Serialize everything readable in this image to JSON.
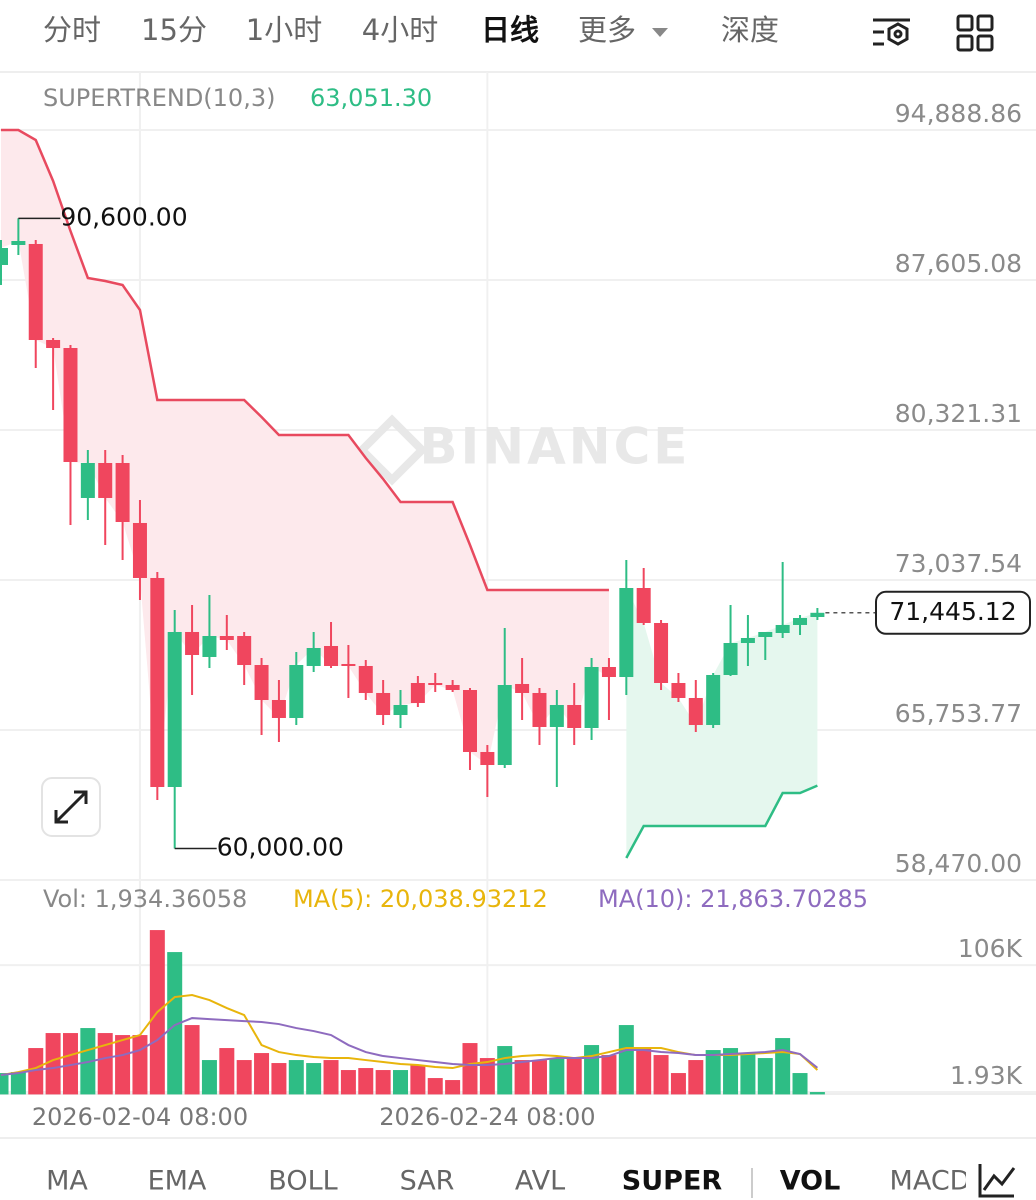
{
  "tabs": {
    "items": [
      "分时",
      "15分",
      "1小时",
      "4小时",
      "日线",
      "更多",
      "深度"
    ],
    "active": 4
  },
  "chart_data": [
    {
      "type": "candlestick",
      "indicator": "SUPERTREND(10,3)",
      "indicator_value_label": "63,051.30",
      "watermark": "BINANCE",
      "categories": [
        null,
        null,
        null,
        null,
        null,
        null,
        null,
        null,
        "2026-02-04 08:00",
        null,
        null,
        null,
        null,
        null,
        null,
        null,
        null,
        null,
        null,
        null,
        null,
        null,
        null,
        null,
        null,
        null,
        null,
        null,
        "2026-02-24 08:00",
        null,
        null,
        null,
        null,
        null,
        null,
        null,
        null,
        null,
        null,
        null,
        null,
        null,
        null,
        null,
        null,
        null,
        null,
        null
      ],
      "open": [
        88334,
        89305,
        89354,
        84692,
        84303,
        77020,
        78719,
        78719,
        75806,
        73135,
        62986,
        70513,
        69299,
        70318,
        70318,
        68910,
        67211,
        66337,
        68862,
        69833,
        68959,
        68862,
        67551,
        66482,
        68036,
        68036,
        67939,
        67696,
        64686,
        64054,
        67988,
        67551,
        65900,
        66968,
        65851,
        68813,
        68327,
        72649,
        70950,
        68036,
        67308,
        65997,
        68425,
        69978,
        70270,
        70464,
        70853,
        71241
      ],
      "high": [
        89548,
        90600,
        89548,
        84789,
        84449,
        79350,
        79350,
        79108,
        76922,
        73426,
        71581,
        71824,
        72309,
        71338,
        70513,
        69250,
        68182,
        69541,
        70513,
        70998,
        69881,
        69153,
        68182,
        67696,
        68376,
        68522,
        68182,
        67793,
        65025,
        70707,
        69250,
        67793,
        67696,
        68036,
        69250,
        69250,
        74009,
        73620,
        71095,
        68522,
        68182,
        68522,
        71824,
        71338,
        70513,
        73912,
        71338,
        71678
      ],
      "low": [
        87363,
        88819,
        83332,
        81293,
        75708,
        75951,
        74737,
        74009,
        72067,
        62355,
        60000,
        67453,
        68765,
        69639,
        67939,
        65511,
        65171,
        65997,
        68570,
        68765,
        67308,
        67211,
        65997,
        65851,
        66871,
        67599,
        67599,
        63811,
        62500,
        63909,
        66239,
        65025,
        62986,
        65025,
        65268,
        66239,
        67453,
        70853,
        67696,
        67114,
        65657,
        65851,
        68376,
        68862,
        69153,
        70221,
        70367,
        71095
      ],
      "close": [
        89159,
        89499,
        84692,
        84303,
        78768,
        78719,
        77020,
        75854,
        73135,
        62986,
        70513,
        69396,
        70318,
        70124,
        68910,
        67211,
        66337,
        68910,
        69736,
        68862,
        68862,
        67551,
        66482,
        66968,
        67065,
        67939,
        67696,
        64686,
        64054,
        67939,
        67551,
        65900,
        66968,
        65851,
        68813,
        68327,
        72649,
        70950,
        68036,
        67308,
        65997,
        68425,
        69978,
        70221,
        70513,
        70853,
        71192,
        71445.12
      ],
      "up_color": "#2ebd85",
      "down_color": "#f0465e",
      "supertrend_upper": [
        94889,
        94889,
        94404,
        92413,
        89985,
        87703,
        87557,
        87363,
        86149,
        81778,
        81778,
        81778,
        81778,
        81778,
        81778,
        80953,
        80079,
        80079,
        80079,
        80079,
        80079,
        78962,
        77942,
        76825,
        76825,
        76825,
        76825,
        74737,
        72552,
        72552,
        72552,
        72552,
        72552,
        72552,
        72552,
        72552,
        null,
        null,
        null,
        null,
        null,
        null,
        null,
        null,
        null,
        null,
        null,
        null
      ],
      "supertrend_lower": [
        null,
        null,
        null,
        null,
        null,
        null,
        null,
        null,
        null,
        null,
        null,
        null,
        null,
        null,
        null,
        null,
        null,
        null,
        null,
        null,
        null,
        null,
        null,
        null,
        null,
        null,
        null,
        null,
        null,
        null,
        null,
        null,
        null,
        null,
        null,
        null,
        59538,
        61092,
        61092,
        61092,
        61092,
        61092,
        61092,
        61092,
        61092,
        62695,
        62695,
        63051.3
      ],
      "upper_color": "#e84a5f",
      "lower_color": "#2ebd85",
      "upper_fill": "#fde9ec",
      "lower_fill": "#e5f7ee",
      "ylim": [
        58470,
        94888.86
      ],
      "yticks": [
        {
          "value": 58470,
          "label": "58,470.00"
        },
        {
          "value": 65753.77,
          "label": "65,753.77"
        },
        {
          "value": 73037.54,
          "label": "73,037.54"
        },
        {
          "value": 80321.31,
          "label": "80,321.31"
        },
        {
          "value": 87605.08,
          "label": "87,605.08"
        },
        {
          "value": 94888.86,
          "label": "94,888.86"
        }
      ],
      "grid": true,
      "last_price": 71445.12,
      "last_price_label": "71,445.12",
      "annotations": [
        {
          "label": "90,600.00",
          "value": 90600,
          "index": 1
        },
        {
          "label": "60,000.00",
          "value": 60000,
          "index": 10
        }
      ]
    },
    {
      "type": "bar",
      "label": "Vol: 1,934.36058",
      "values": [
        17500,
        18320,
        37990,
        50280,
        50280,
        54380,
        50280,
        48640,
        48640,
        134690,
        116660,
        56840,
        28150,
        37990,
        28150,
        33890,
        25700,
        28150,
        25700,
        28150,
        19960,
        21600,
        19960,
        19960,
        24050,
        13400,
        11760,
        42080,
        29790,
        39630,
        28150,
        28150,
        29790,
        29790,
        40450,
        32250,
        56840,
        37990,
        32250,
        17500,
        28150,
        36350,
        37990,
        33890,
        29790,
        46180,
        17500,
        1934.36058
      ],
      "series": [
        {
          "name": "MA(5): 20,038.93212",
          "color": "#e8b50c",
          "values": [
            15860,
            18320,
            21600,
            28150,
            32250,
            36350,
            40450,
            44540,
            48640,
            67490,
            79780,
            81420,
            77320,
            70770,
            65030,
            40450,
            34710,
            32250,
            30610,
            29790,
            29790,
            28150,
            26520,
            24880,
            24050,
            22420,
            21600,
            24880,
            26520,
            29790,
            31430,
            32250,
            31430,
            29790,
            31430,
            34710,
            37990,
            37990,
            37990,
            34710,
            32250,
            32250,
            32250,
            33070,
            33890,
            34710,
            33070,
            20038.93212
          ]
        },
        {
          "name": "MA(10): 21,863.70285",
          "color": "#8e6bbf",
          "values": [
            15860,
            17500,
            19960,
            21600,
            24050,
            26520,
            29790,
            32250,
            36350,
            44540,
            56840,
            62570,
            61750,
            60930,
            60110,
            59300,
            57660,
            54380,
            51920,
            48640,
            40450,
            34710,
            31430,
            29790,
            28150,
            26520,
            24880,
            24050,
            24050,
            24880,
            26520,
            28150,
            29790,
            29790,
            29790,
            31430,
            36350,
            36350,
            34710,
            33890,
            32250,
            32250,
            33070,
            33890,
            34710,
            36350,
            33070,
            21863.70285
          ]
        }
      ],
      "ylim": [
        0,
        140000
      ],
      "yticks": [
        {
          "value": 1930,
          "label": "1.93K"
        },
        {
          "value": 106000,
          "label": "106K"
        }
      ],
      "grid": true
    }
  ],
  "indicator_tabs": {
    "items": [
      "MA",
      "EMA",
      "BOLL",
      "SAR",
      "AVL",
      "SUPER",
      "VOL",
      "MACD"
    ],
    "active": [
      5,
      6
    ]
  }
}
